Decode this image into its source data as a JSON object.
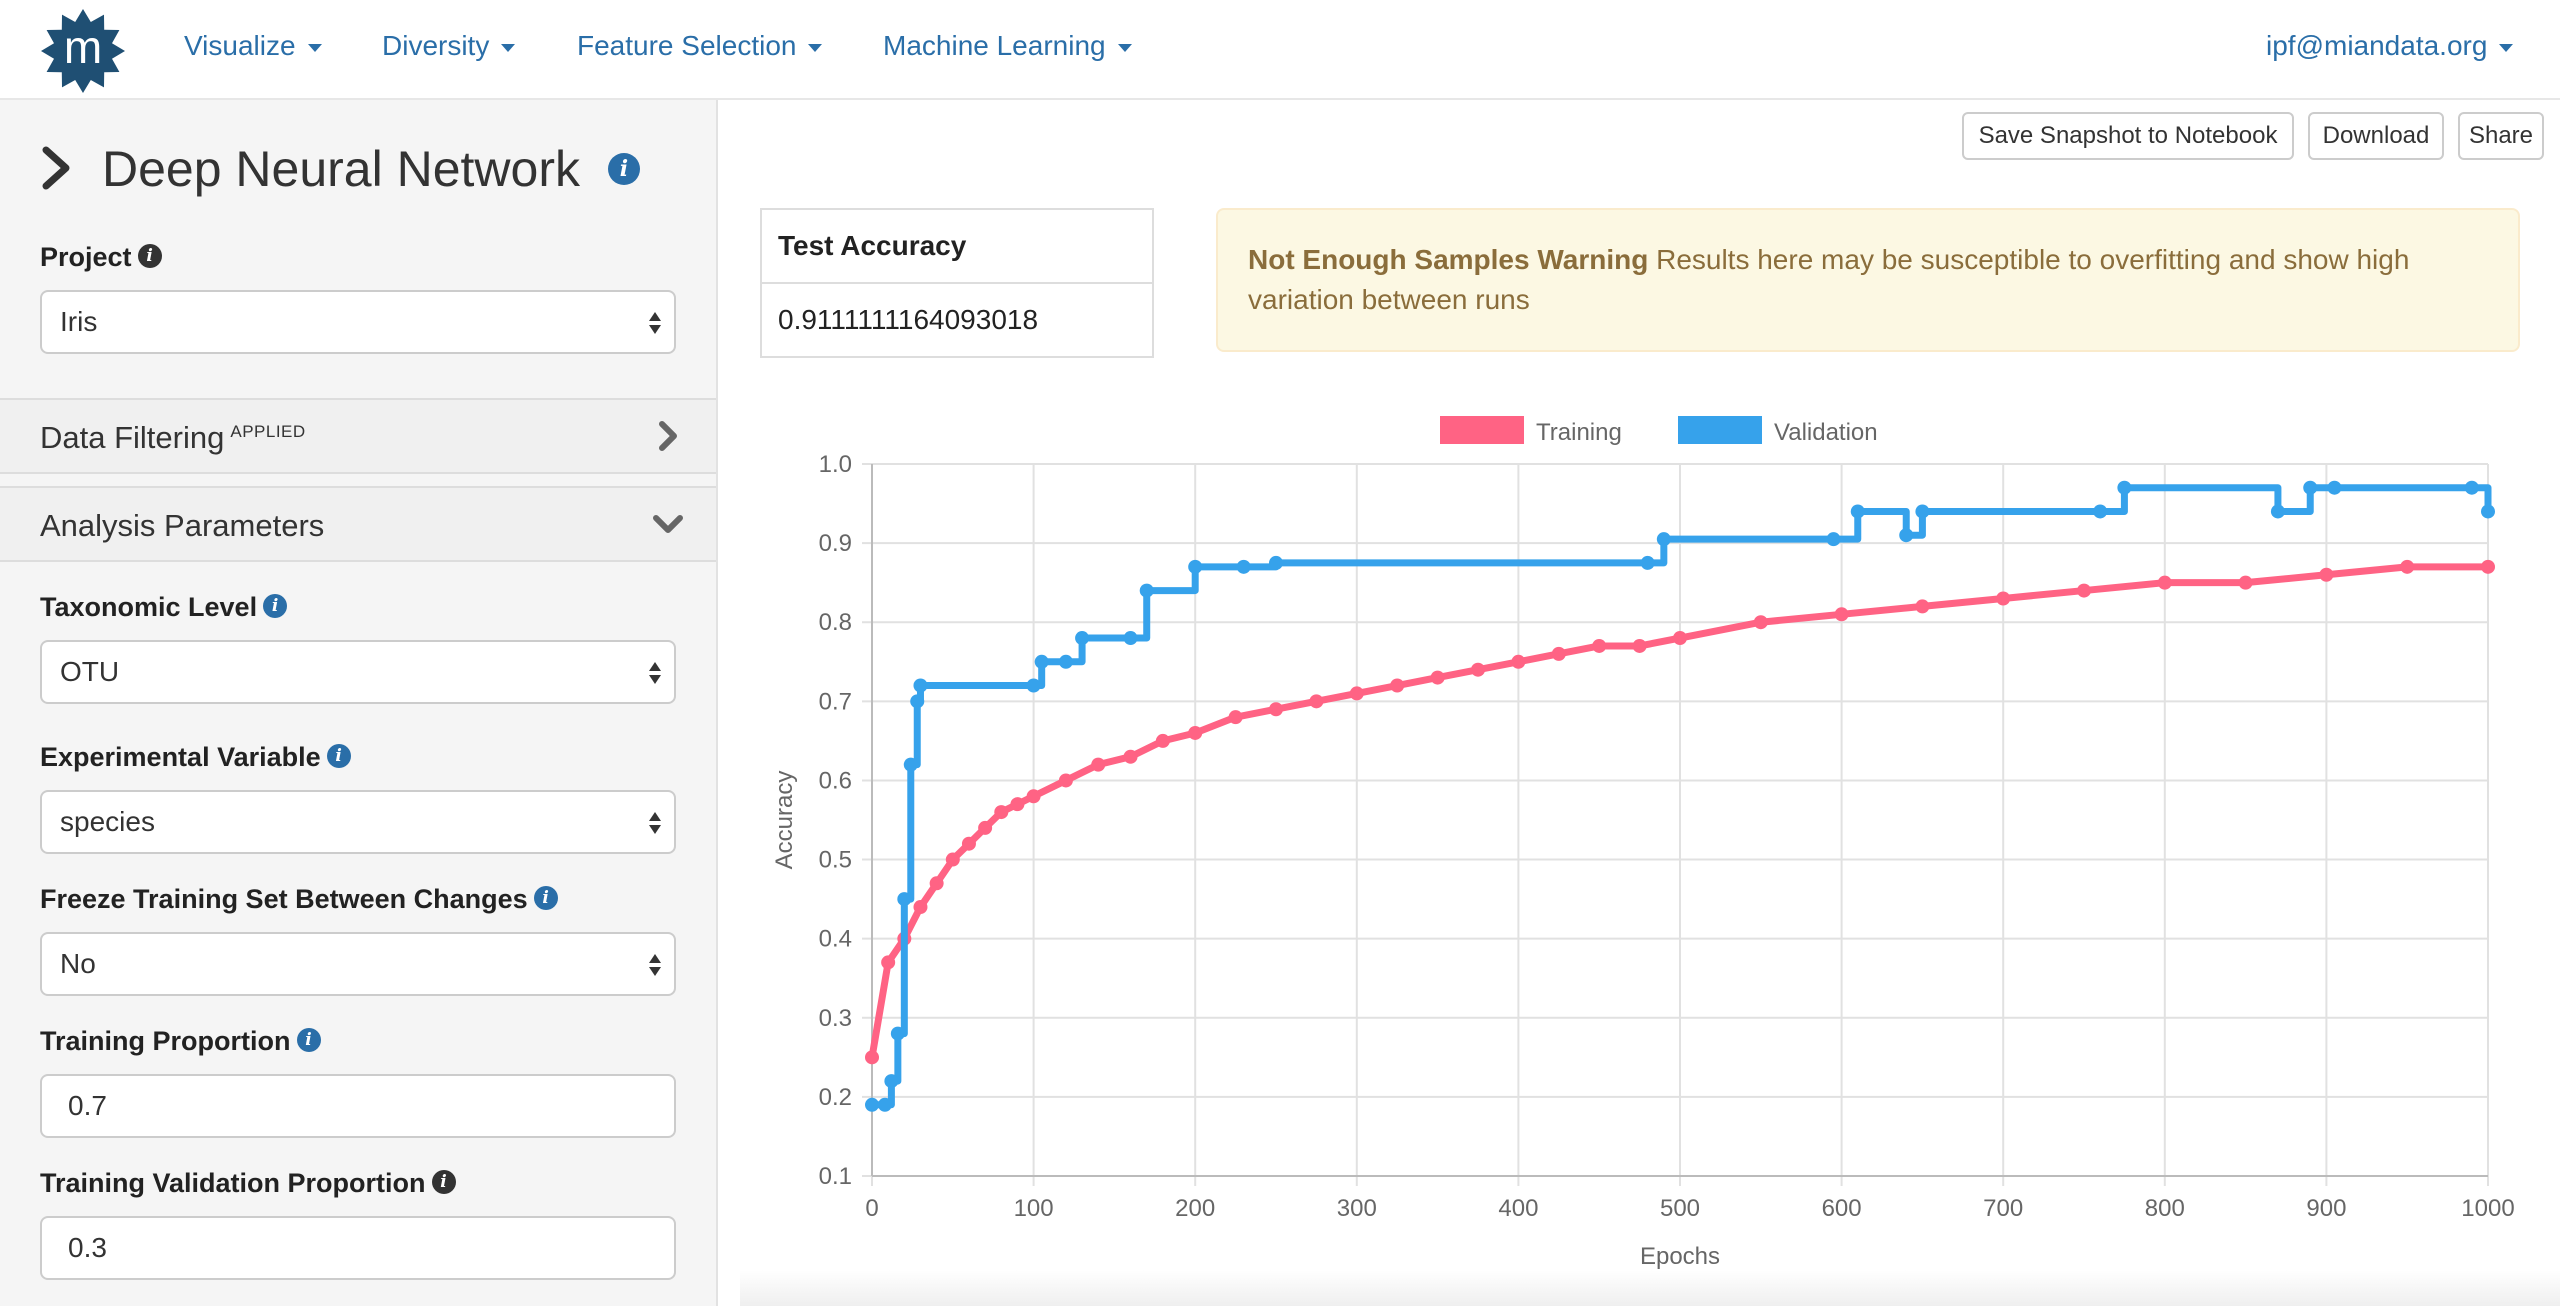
{
  "navbar": {
    "logo_letter": "m",
    "menu": [
      {
        "label": "Visualize"
      },
      {
        "label": "Diversity"
      },
      {
        "label": "Feature Selection"
      },
      {
        "label": "Machine Learning"
      }
    ],
    "user": "ipf@miandata.org"
  },
  "sidebar": {
    "title": "Deep Neural Network",
    "project": {
      "label": "Project",
      "value": "Iris"
    },
    "data_filtering": {
      "label": "Data Filtering",
      "badge": "APPLIED"
    },
    "analysis_parameters": {
      "label": "Analysis Parameters",
      "taxonomic_level": {
        "label": "Taxonomic Level",
        "value": "OTU"
      },
      "experimental_variable": {
        "label": "Experimental Variable",
        "value": "species"
      },
      "freeze_training": {
        "label": "Freeze Training Set Between Changes",
        "value": "No"
      },
      "training_proportion": {
        "label": "Training Proportion",
        "value": "0.7"
      },
      "training_validation_proportion": {
        "label": "Training Validation Proportion",
        "value": "0.3"
      }
    }
  },
  "toolbar": {
    "save_snapshot": "Save Snapshot to Notebook",
    "download": "Download",
    "share": "Share"
  },
  "results": {
    "test_accuracy_header": "Test Accuracy",
    "test_accuracy_value": "0.9111111164093018",
    "warning_title": "Not Enough Samples Warning",
    "warning_text": "Results here may be susceptible to overfitting and show high variation between runs"
  },
  "colors": {
    "link": "#2a6ea8",
    "training": "#ff6384",
    "validation": "#36a2eb",
    "logo": "#1f4f73"
  },
  "chart_data": {
    "type": "line",
    "xlabel": "Epochs",
    "ylabel": "Accuracy",
    "xlim": [
      0,
      1000
    ],
    "ylim": [
      0.1,
      1.0
    ],
    "x_ticks": [
      "0",
      "100",
      "200",
      "300",
      "400",
      "500",
      "600",
      "700",
      "800",
      "900",
      "1000"
    ],
    "y_ticks": [
      "0.1",
      "0.2",
      "0.3",
      "0.4",
      "0.5",
      "0.6",
      "0.7",
      "0.8",
      "0.9",
      "1.0"
    ],
    "grid": true,
    "legend_position": "top",
    "series": [
      {
        "name": "Training",
        "color": "#ff6384",
        "x": [
          0,
          10,
          20,
          30,
          40,
          50,
          60,
          70,
          80,
          90,
          100,
          120,
          140,
          160,
          180,
          200,
          225,
          250,
          275,
          300,
          325,
          350,
          375,
          400,
          425,
          450,
          475,
          500,
          550,
          600,
          650,
          700,
          750,
          800,
          850,
          900,
          950,
          1000
        ],
        "values": [
          0.25,
          0.37,
          0.4,
          0.44,
          0.47,
          0.5,
          0.52,
          0.54,
          0.56,
          0.57,
          0.58,
          0.6,
          0.62,
          0.63,
          0.65,
          0.66,
          0.68,
          0.69,
          0.7,
          0.71,
          0.72,
          0.73,
          0.74,
          0.75,
          0.76,
          0.77,
          0.77,
          0.78,
          0.8,
          0.81,
          0.82,
          0.83,
          0.84,
          0.85,
          0.85,
          0.86,
          0.87,
          0.87
        ]
      },
      {
        "name": "Validation",
        "color": "#36a2eb",
        "x": [
          0,
          8,
          12,
          16,
          20,
          24,
          28,
          30,
          100,
          105,
          120,
          130,
          160,
          170,
          200,
          230,
          250,
          480,
          490,
          595,
          610,
          640,
          650,
          760,
          775,
          870,
          890,
          905,
          990,
          1000
        ],
        "values": [
          0.19,
          0.19,
          0.22,
          0.28,
          0.45,
          0.62,
          0.7,
          0.72,
          0.72,
          0.75,
          0.75,
          0.78,
          0.78,
          0.84,
          0.87,
          0.87,
          0.875,
          0.875,
          0.905,
          0.905,
          0.94,
          0.91,
          0.94,
          0.94,
          0.97,
          0.94,
          0.97,
          0.97,
          0.97,
          0.94
        ]
      }
    ]
  }
}
